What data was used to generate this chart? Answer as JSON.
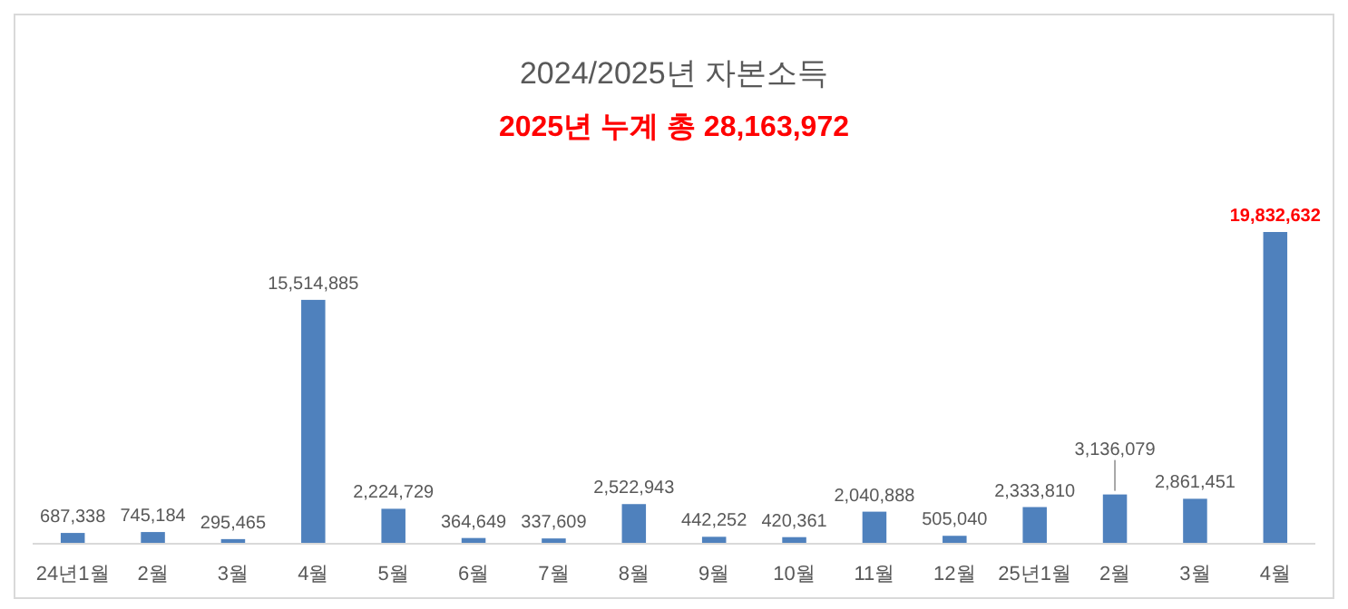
{
  "chart_data": {
    "type": "bar",
    "title": "2024/2025년 자본소득",
    "subtitle": "2025년 누계 총 28,163,972",
    "categories": [
      "24년1월",
      "2월",
      "3월",
      "4월",
      "5월",
      "6월",
      "7월",
      "8월",
      "9월",
      "10월",
      "11월",
      "12월",
      "25년1월",
      "2월",
      "3월",
      "4월"
    ],
    "values": [
      687338,
      745184,
      295465,
      15514885,
      2224729,
      364649,
      337609,
      2522943,
      442252,
      420361,
      2040888,
      505040,
      2333810,
      3136079,
      2861451,
      19832632
    ],
    "value_labels": [
      "687,338",
      "745,184",
      "295,465",
      "15,514,885",
      "2,224,729",
      "364,649",
      "337,609",
      "2,522,943",
      "442,252",
      "420,361",
      "2,040,888",
      "505,040",
      "2,333,810",
      "3,136,079",
      "2,861,451",
      "19,832,632"
    ],
    "color": "#4f81bd"
  }
}
